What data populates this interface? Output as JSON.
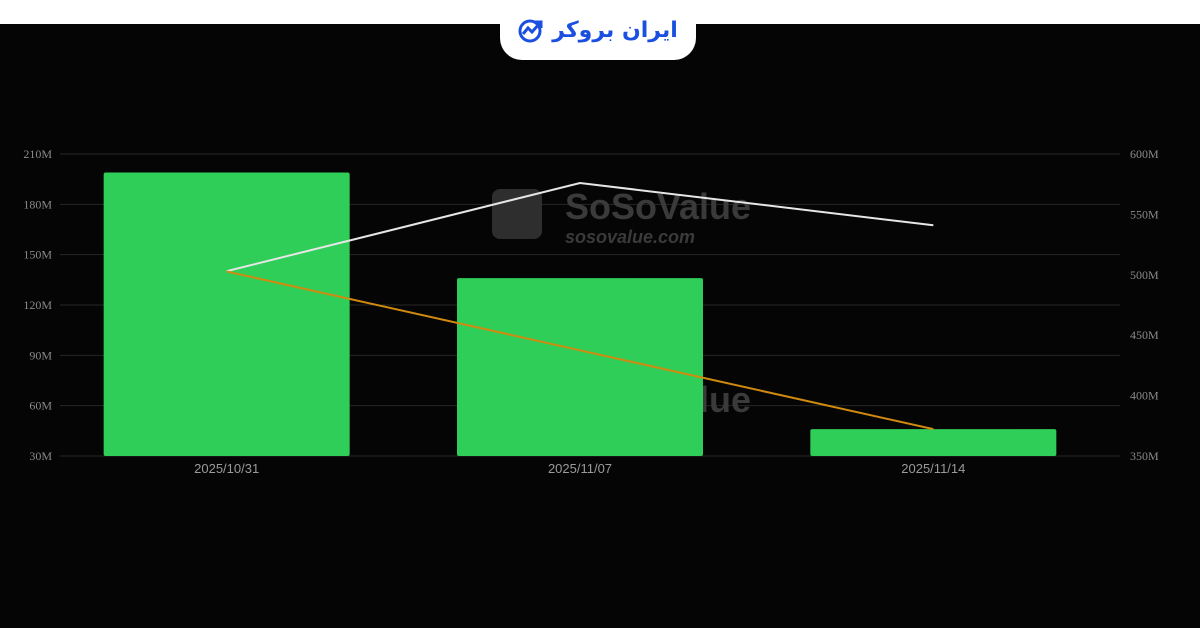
{
  "brand": {
    "logo_text": "ایران بروکر",
    "logo_color": "#1a4fe0"
  },
  "watermark": {
    "name": "SoSoValue",
    "url": "sosovalue.com"
  },
  "chart_data": {
    "type": "bar",
    "categories": [
      "2025/10/31",
      "2025/11/07",
      "2025/11/14"
    ],
    "left_axis": {
      "ylim": [
        30,
        210
      ],
      "ticks": [
        "30M",
        "60M",
        "90M",
        "120M",
        "150M",
        "180M",
        "210M"
      ],
      "tick_values": [
        30,
        60,
        90,
        120,
        150,
        180,
        210
      ]
    },
    "right_axis": {
      "ylim": [
        350,
        600
      ],
      "ticks": [
        "350M",
        "400M",
        "450M",
        "500M",
        "550M",
        "600M"
      ],
      "tick_values": [
        350,
        400,
        450,
        500,
        550,
        600
      ]
    },
    "series": [
      {
        "type": "bar",
        "axis": "left",
        "color": "#2fce58",
        "values": [
          199,
          136,
          46
        ]
      },
      {
        "type": "line",
        "axis": "right",
        "color": "#e6e6e6",
        "values": [
          503,
          576,
          541
        ]
      },
      {
        "type": "line",
        "axis": "left",
        "color": "#d08a10",
        "values": [
          140,
          93,
          46
        ]
      }
    ],
    "grid": true,
    "legend": "none"
  }
}
